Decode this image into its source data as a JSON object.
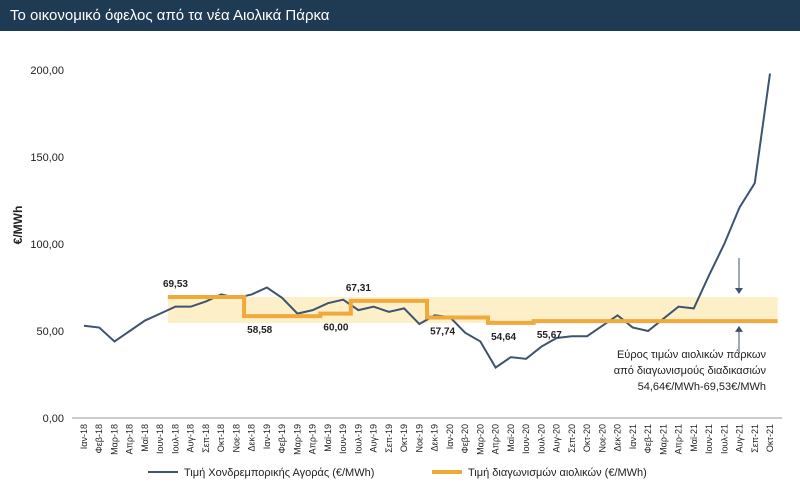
{
  "chart_data": {
    "type": "line",
    "title": "Το οικονομικό όφελος από τα νέα Αιολικά Πάρκα",
    "y_label": "€/MWh",
    "categories": [
      "Ιαν-18",
      "Φεβ-18",
      "Μαρ-18",
      "Απρ-18",
      "Μαϊ-18",
      "Ιουν-18",
      "Ιουλ-18",
      "Αυγ-18",
      "Σεπ-18",
      "Οκτ-18",
      "Νοε-18",
      "Δεκ-18",
      "Ιαν-19",
      "Φεβ-19",
      "Μαρ-19",
      "Απρ-19",
      "Μαϊ-19",
      "Ιουν-19",
      "Ιουλ-19",
      "Αυγ-19",
      "Σεπ-19",
      "Οκτ-19",
      "Νοε-19",
      "Δεκ-19",
      "Ιαν-20",
      "Φεβ-20",
      "Μαρ-20",
      "Απρ-20",
      "Μαϊ-20",
      "Ιουν-20",
      "Ιουλ-20",
      "Αυγ-20",
      "Σεπ-20",
      "Οκτ-20",
      "Νοε-20",
      "Δεκ-20",
      "Ιαν-21",
      "Φεβ-21",
      "Μαρ-21",
      "Απρ-21",
      "Μαϊ-21",
      "Ιουν-21",
      "Ιουλ-21",
      "Αυγ-21",
      "Σεπ-21",
      "Οκτ-21"
    ],
    "series": [
      {
        "name": "Τιμή Χονδρεμπορικής Αγοράς (€/MWh)",
        "color": "#3d5470",
        "step": false,
        "values": [
          53,
          52,
          44,
          50,
          56,
          60,
          64,
          64,
          67,
          71,
          69,
          71,
          75,
          69,
          60,
          62,
          66,
          68,
          62,
          64,
          61,
          63,
          54,
          59,
          58,
          49,
          44,
          29,
          35,
          34,
          41,
          46,
          47,
          47,
          53,
          59,
          52,
          50,
          57,
          64,
          63,
          82,
          100,
          121,
          135,
          198
        ]
      },
      {
        "name": "Τιμή διαγωνισμών αιολικών (€/MWh)",
        "color": "#f0aa3c",
        "step": true,
        "values": [
          null,
          null,
          null,
          null,
          null,
          null,
          69.53,
          69.53,
          69.53,
          69.53,
          69.53,
          58.58,
          58.58,
          58.58,
          58.58,
          58.58,
          60,
          60,
          67.31,
          67.31,
          67.31,
          67.31,
          67.31,
          57.74,
          57.74,
          57.74,
          57.74,
          54.64,
          54.64,
          54.64,
          55.67,
          55.67,
          55.67,
          55.67,
          55.67,
          55.67,
          55.67,
          55.67,
          55.67,
          55.67,
          55.67,
          55.67,
          55.67,
          55.67,
          55.67,
          55.67
        ],
        "value_labels": [
          null,
          null,
          null,
          null,
          null,
          null,
          "69,53",
          null,
          null,
          null,
          null,
          "58,58",
          null,
          null,
          null,
          null,
          "60,00",
          null,
          "67,31",
          null,
          null,
          null,
          null,
          "57,74",
          null,
          null,
          null,
          "54,64",
          null,
          null,
          "55,67",
          null,
          null,
          null,
          null,
          null,
          null,
          null,
          null,
          null,
          null,
          null,
          null,
          null,
          null,
          null
        ]
      }
    ],
    "range_band": {
      "low": 54.64,
      "high": 69.53,
      "color": "#fdefc8"
    },
    "annotation": [
      "Εύρος τιμών αιολικών πάρκων",
      "από διαγωνισμούς διαδικασιών",
      "54,64€/MWh-69,53€/MWh"
    ],
    "ylim": [
      0,
      200
    ],
    "yticks": [
      {
        "value": 0,
        "label": "0,00"
      },
      {
        "value": 50,
        "label": "50,00"
      },
      {
        "value": 100,
        "label": "100,00"
      },
      {
        "value": 150,
        "label": "150,00"
      },
      {
        "value": 200,
        "label": "200,00"
      }
    ],
    "grid": false
  }
}
